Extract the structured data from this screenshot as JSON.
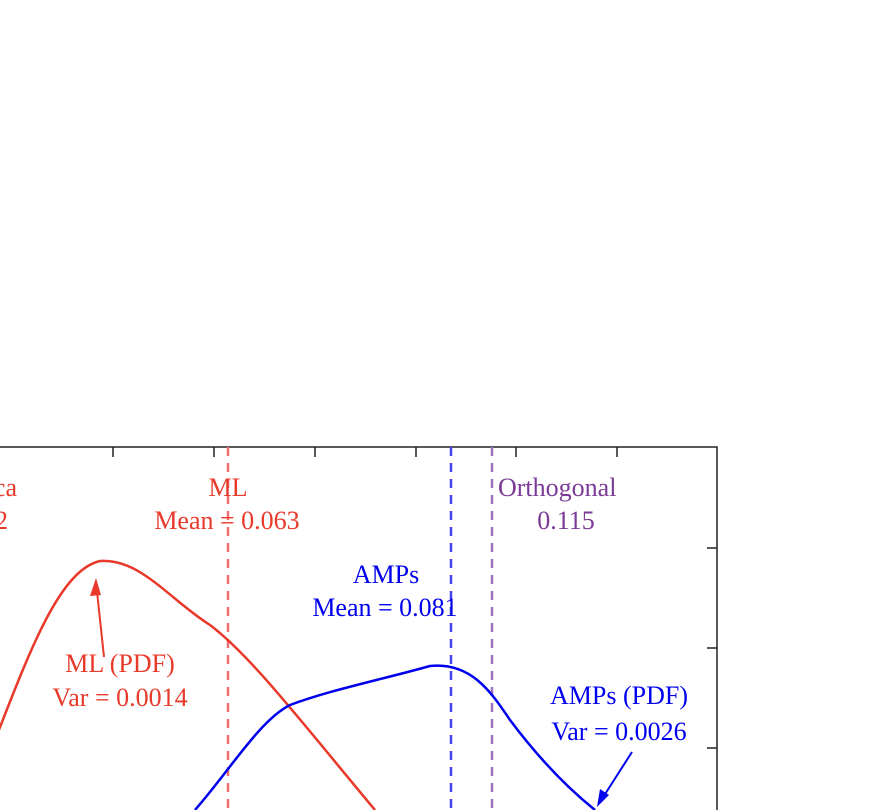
{
  "annotations": {
    "partial_left": [
      "ca",
      "2"
    ],
    "ml_mean": [
      "ML",
      "Mean = 0.063"
    ],
    "amps_mean": [
      "AMPs",
      "Mean = 0.081"
    ],
    "orthogonal": [
      "Orthogonal",
      "0.115"
    ],
    "ml_pdf": [
      "ML (PDF)",
      "Var = 0.0014"
    ],
    "amps_pdf": [
      "AMPs (PDF)",
      "Var = 0.0026"
    ]
  }
}
